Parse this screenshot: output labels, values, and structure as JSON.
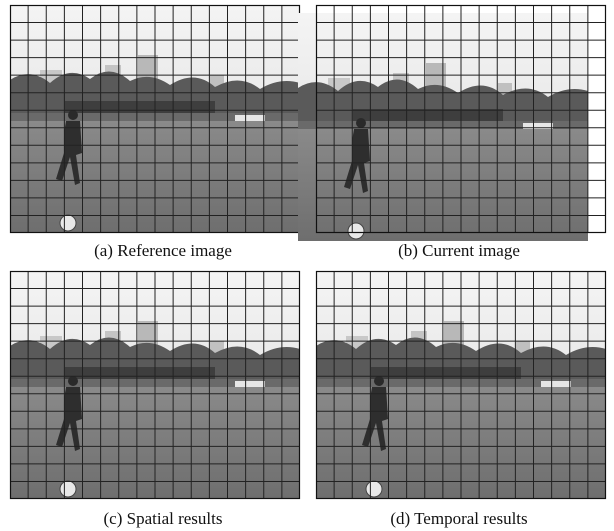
{
  "panels": [
    {
      "caption": "(a) Reference image"
    },
    {
      "caption": "(b) Current image"
    },
    {
      "caption": "(c) Spatial results"
    },
    {
      "caption": "(d) Temporal results"
    }
  ]
}
